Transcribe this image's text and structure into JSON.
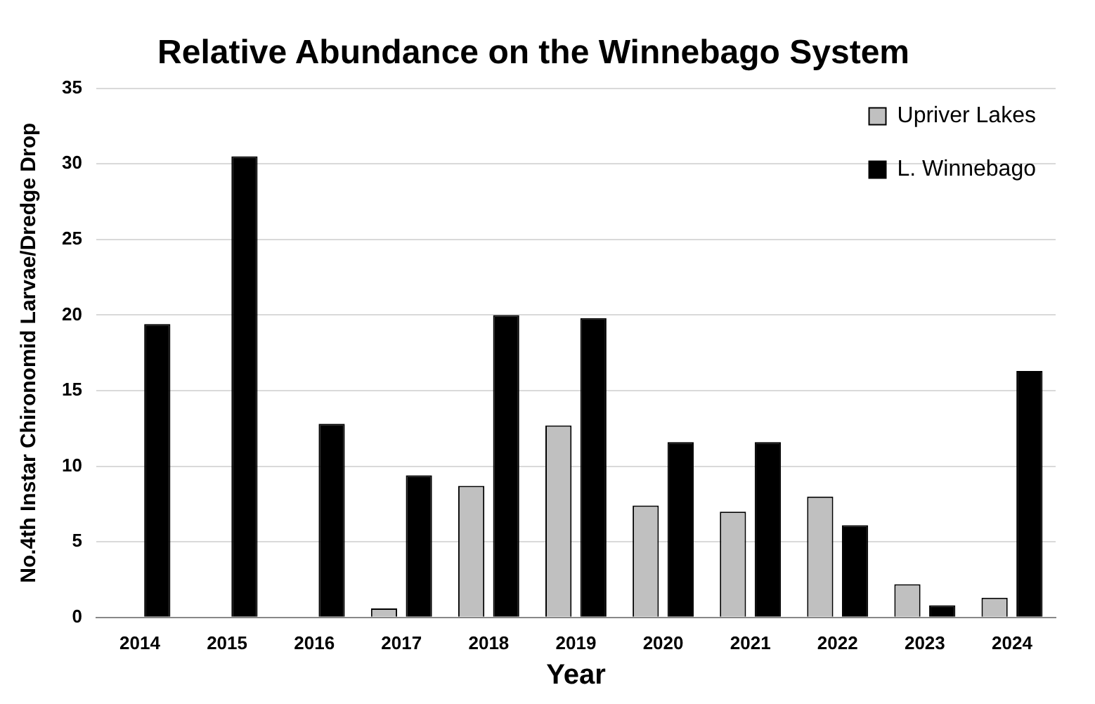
{
  "chart_data": {
    "type": "bar",
    "title": "Relative Abundance on the Winnebago System",
    "xlabel": "Year",
    "ylabel": "No.4th Instar Chironomid Larvae/Dredge Drop",
    "categories": [
      "2014",
      "2015",
      "2016",
      "2017",
      "2018",
      "2019",
      "2020",
      "2021",
      "2022",
      "2023",
      "2024"
    ],
    "series": [
      {
        "name": "Upriver Lakes",
        "color": "#c0c0c0",
        "values": [
          null,
          null,
          null,
          0.6,
          8.7,
          12.7,
          7.4,
          7.0,
          8.0,
          2.2,
          1.3
        ]
      },
      {
        "name": "L. Winnebago",
        "color": "#000000",
        "values": [
          19.4,
          30.5,
          12.8,
          9.4,
          20.0,
          19.8,
          11.6,
          11.6,
          6.1,
          0.8,
          16.3
        ]
      }
    ],
    "ylim": [
      0,
      35
    ],
    "yticks": [
      0,
      5,
      10,
      15,
      20,
      25,
      30,
      35
    ],
    "grid": "y",
    "legend": "top right"
  }
}
